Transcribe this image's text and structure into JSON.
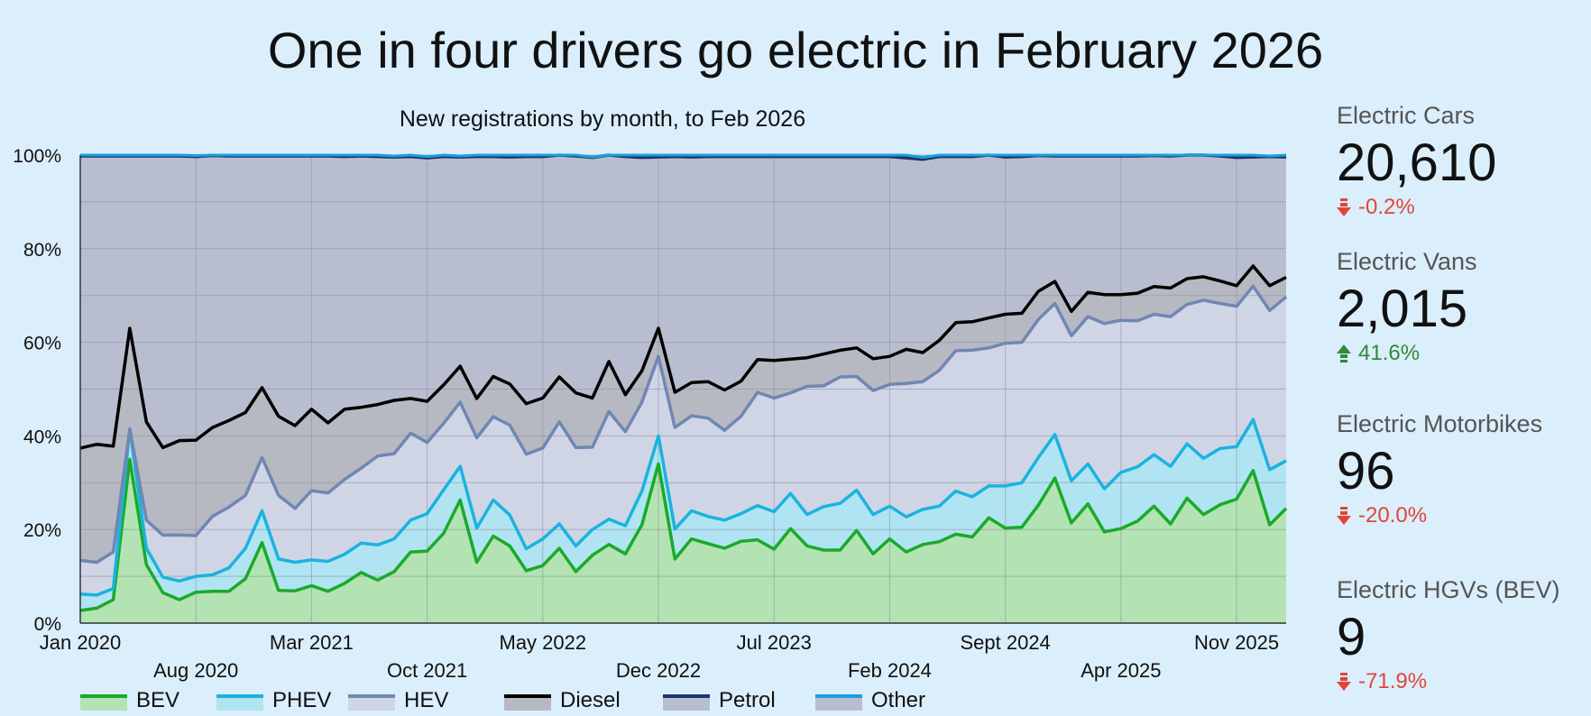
{
  "title": "One in four drivers go electric in February 2026",
  "colors": {
    "background": "#dbeefb",
    "BEV": "#1aaa2a",
    "PHEV": "#1ab3df",
    "HEV": "#6f87b3",
    "Diesel": "#000000",
    "Petrol": "#1e3566",
    "Other": "#1a9fdf",
    "down": "#e0453b",
    "up": "#2e8b3a"
  },
  "stats": [
    {
      "label": "Electric Cars",
      "value": "20,610",
      "change": "-0.2%",
      "direction": "down",
      "icon": "arrow-down-icon"
    },
    {
      "label": "Electric Vans",
      "value": "2,015",
      "change": "41.6%",
      "direction": "up",
      "icon": "arrow-up-icon"
    },
    {
      "label": "Electric Motorbikes",
      "value": "96",
      "change": "-20.0%",
      "direction": "down",
      "icon": "arrow-down-icon"
    },
    {
      "label": "Electric HGVs (BEV)",
      "value": "9",
      "change": "-71.9%",
      "direction": "down",
      "icon": "arrow-down-icon"
    }
  ],
  "chart_data": {
    "type": "area",
    "title": "New registrations by month, to  Feb 2026",
    "stacked": true,
    "x_start": "Jan 2020",
    "x_end": "Feb 2026",
    "ylim": [
      0,
      100
    ],
    "y_ticks": [
      "0%",
      "20%",
      "40%",
      "60%",
      "80%",
      "100%"
    ],
    "x_ticks_top": [
      "Jan 2020",
      "Mar 2021",
      "May 2022",
      "Jul 2023",
      "Sept 2024",
      "Nov 2025"
    ],
    "x_ticks_bottom": [
      "Aug 2020",
      "Oct 2021",
      "Dec 2022",
      "Feb 2024",
      "Apr 2025"
    ],
    "grid": true,
    "legend_position": "bottom",
    "series": [
      {
        "name": "BEV",
        "values": [
          2.7,
          3.2,
          5.0,
          35.0,
          12.5,
          6.5,
          5.0,
          6.6,
          6.8,
          6.8,
          9.5,
          17.2,
          7.0,
          6.9,
          8.0,
          6.8,
          8.5,
          10.8,
          9.2,
          11.0,
          15.2,
          15.4,
          19.2,
          26.3,
          13.0,
          18.6,
          16.5,
          11.2,
          12.3,
          16.0,
          11.0,
          14.5,
          16.8,
          14.8,
          21.0,
          34.0,
          13.7,
          18.0,
          17.0,
          16.0,
          17.5,
          17.8,
          15.8,
          20.2,
          16.5,
          15.6,
          15.6,
          19.8,
          14.8,
          18.0,
          15.2,
          16.8,
          17.4,
          19.0,
          18.4,
          22.5,
          20.3,
          20.5,
          25.2,
          31.0,
          21.4,
          25.5,
          19.5,
          20.2,
          21.8,
          25.0,
          21.2,
          26.7,
          23.2,
          25.3,
          26.5,
          32.6,
          21.0,
          24.5
        ]
      },
      {
        "name": "PHEV",
        "values": [
          3.5,
          2.8,
          2.4,
          6.5,
          3.5,
          3.3,
          4.0,
          3.4,
          3.5,
          5.0,
          6.5,
          6.8,
          6.7,
          6.1,
          5.5,
          6.4,
          6.2,
          6.3,
          7.5,
          7.0,
          6.8,
          8.0,
          9.3,
          7.2,
          7.3,
          7.7,
          6.6,
          4.7,
          5.7,
          5.2,
          5.5,
          5.5,
          5.4,
          6.0,
          7.2,
          6.0,
          6.4,
          6.0,
          5.8,
          6.0,
          5.9,
          7.3,
          8.0,
          7.5,
          6.7,
          9.3,
          10.0,
          8.6,
          8.4,
          7.0,
          7.5,
          7.5,
          7.6,
          9.2,
          8.6,
          6.8,
          9.0,
          9.5,
          10.2,
          9.3,
          9.0,
          8.5,
          9.2,
          12.0,
          11.6,
          11.0,
          12.3,
          11.6,
          12.0,
          12.0,
          11.2,
          10.9,
          11.8,
          10.2
        ]
      },
      {
        "name": "HEV",
        "values": [
          7.2,
          7.0,
          7.8,
          0.0,
          6.0,
          9.0,
          9.8,
          8.7,
          12.5,
          13.0,
          11.3,
          11.4,
          13.6,
          11.5,
          14.8,
          14.6,
          16.0,
          16.0,
          19.0,
          18.2,
          18.6,
          15.2,
          14.2,
          13.7,
          19.3,
          17.8,
          19.2,
          20.2,
          19.4,
          21.8,
          21.0,
          17.6,
          23.0,
          20.1,
          19.0,
          17.0,
          21.7,
          20.3,
          21.0,
          19.2,
          20.8,
          24.2,
          24.3,
          21.5,
          27.4,
          25.8,
          27.0,
          24.3,
          26.5,
          26.0,
          28.5,
          27.3,
          29.0,
          30.0,
          31.3,
          29.5,
          30.5,
          30.0,
          29.5,
          28.0,
          31.0,
          31.5,
          35.3,
          32.5,
          31.2,
          30.0,
          32.0,
          29.8,
          33.8,
          31.0,
          30.0,
          28.5,
          34.0,
          35.0
        ]
      },
      {
        "name": "Diesel",
        "values": [
          24.0,
          25.2,
          22.6,
          21.5,
          21.0,
          18.7,
          20.2,
          20.4,
          19.0,
          18.5,
          17.7,
          14.9,
          16.9,
          17.7,
          17.4,
          15.0,
          15.0,
          13.0,
          11.0,
          11.4,
          7.4,
          8.8,
          8.2,
          7.7,
          8.4,
          8.6,
          8.8,
          10.8,
          10.7,
          9.6,
          11.7,
          10.5,
          10.7,
          7.9,
          6.7,
          6.0,
          7.5,
          7.1,
          7.8,
          8.6,
          7.5,
          7.0,
          8.0,
          7.2,
          6.1,
          6.8,
          5.7,
          6.1,
          6.8,
          6.0,
          7.3,
          6.2,
          6.4,
          6.0,
          6.1,
          6.4,
          6.2,
          6.2,
          6.0,
          4.7,
          5.2,
          5.2,
          6.2,
          5.5,
          5.9,
          5.9,
          6.1,
          5.5,
          5.0,
          4.8,
          4.4,
          4.3,
          5.3,
          4.2
        ]
      },
      {
        "name": "Petrol",
        "values": [
          62.4,
          61.6,
          62.0,
          36.8,
          56.8,
          62.3,
          60.8,
          60.6,
          58.1,
          56.5,
          54.8,
          49.5,
          55.6,
          57.6,
          54.1,
          57.0,
          54.0,
          53.7,
          53.0,
          52.0,
          51.7,
          52.0,
          48.8,
          44.7,
          51.7,
          47.0,
          48.5,
          52.8,
          51.6,
          49.2,
          50.6,
          51.4,
          47.8,
          50.9,
          45.6,
          36.6,
          50.4,
          48.2,
          48.1,
          49.9,
          48.0,
          43.4,
          43.6,
          43.3,
          43.0,
          42.2,
          41.4,
          40.9,
          43.2,
          42.7,
          40.9,
          41.3,
          39.3,
          35.5,
          35.3,
          35.6,
          33.6,
          33.5,
          29.0,
          26.8,
          33.2,
          29.1,
          29.6,
          29.6,
          29.3,
          28.0,
          28.2,
          26.4,
          26.0,
          26.7,
          27.4,
          23.3,
          27.6,
          25.7
        ]
      },
      {
        "name": "Other",
        "values": [
          0.2,
          0.2,
          0.2,
          0.2,
          0.2,
          0.2,
          0.2,
          0.2,
          0.1,
          0.2,
          0.2,
          0.2,
          0.2,
          0.2,
          0.2,
          0.2,
          0.3,
          0.2,
          0.3,
          0.2,
          0.3,
          0.3,
          0.3,
          0.2,
          0.3,
          0.3,
          0.4,
          0.3,
          0.3,
          0.2,
          0.2,
          0.1,
          0.3,
          0.3,
          0.5,
          0.4,
          0.3,
          0.4,
          0.3,
          0.3,
          0.3,
          0.3,
          0.3,
          0.3,
          0.3,
          0.3,
          0.3,
          0.3,
          0.3,
          0.3,
          0.6,
          0.4,
          0.3,
          0.3,
          0.3,
          0.4,
          0.4,
          0.3,
          0.1,
          0.2,
          0.2,
          0.2,
          0.2,
          0.2,
          0.2,
          0.1,
          0.2,
          0.2,
          0.0,
          0.2,
          0.5,
          0.4,
          0.1,
          0.4
        ]
      }
    ]
  }
}
